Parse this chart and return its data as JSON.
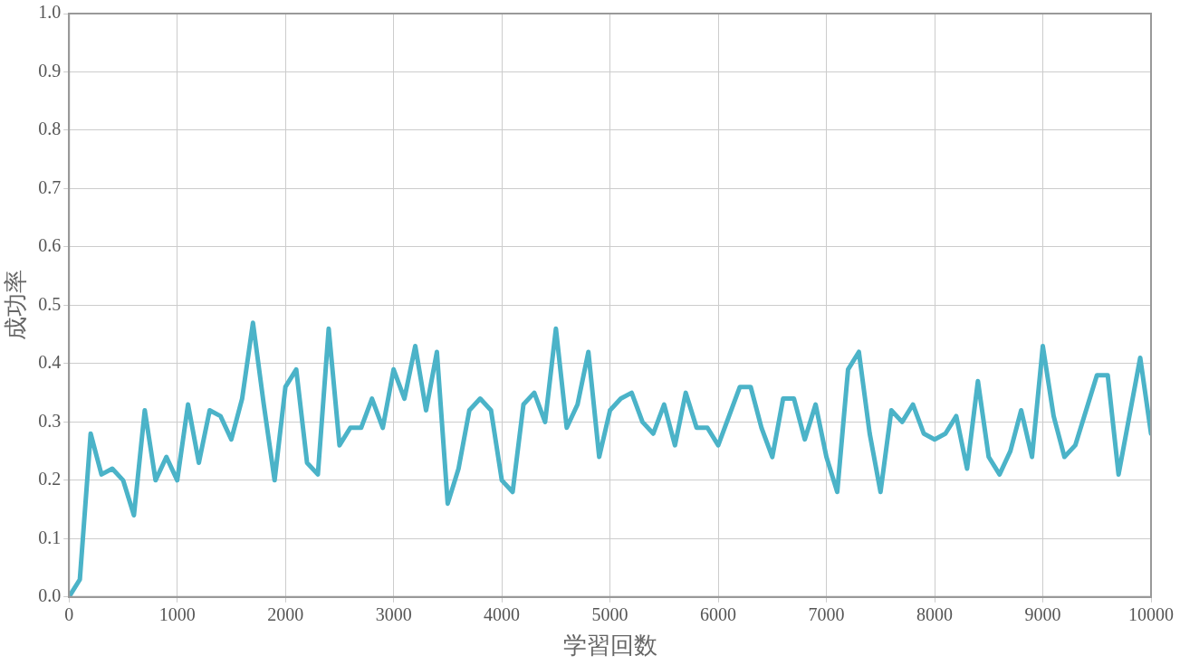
{
  "chart_data": {
    "type": "line",
    "xlabel": "学習回数",
    "ylabel": "成功率",
    "x": [
      0,
      100,
      200,
      300,
      400,
      500,
      600,
      700,
      800,
      900,
      1000,
      1100,
      1200,
      1300,
      1400,
      1500,
      1600,
      1700,
      1800,
      1900,
      2000,
      2100,
      2200,
      2300,
      2400,
      2500,
      2600,
      2700,
      2800,
      2900,
      3000,
      3100,
      3200,
      3300,
      3400,
      3500,
      3600,
      3700,
      3800,
      3900,
      4000,
      4100,
      4200,
      4300,
      4400,
      4500,
      4600,
      4700,
      4800,
      4900,
      5000,
      5100,
      5200,
      5300,
      5400,
      5500,
      5600,
      5700,
      5800,
      5900,
      6000,
      6100,
      6200,
      6300,
      6400,
      6500,
      6600,
      6700,
      6800,
      6900,
      7000,
      7100,
      7200,
      7300,
      7400,
      7500,
      7600,
      7700,
      7800,
      7900,
      8000,
      8100,
      8200,
      8300,
      8400,
      8500,
      8600,
      8700,
      8800,
      8900,
      9000,
      9100,
      9200,
      9300,
      9400,
      9500,
      9600,
      9700,
      9800,
      9900,
      10000
    ],
    "series": [
      {
        "color": "#4bb3c8",
        "values": [
          0.0,
          0.03,
          0.28,
          0.21,
          0.22,
          0.2,
          0.14,
          0.32,
          0.2,
          0.24,
          0.2,
          0.33,
          0.23,
          0.32,
          0.31,
          0.27,
          0.34,
          0.47,
          0.33,
          0.2,
          0.36,
          0.39,
          0.23,
          0.21,
          0.46,
          0.26,
          0.29,
          0.29,
          0.34,
          0.29,
          0.39,
          0.34,
          0.43,
          0.32,
          0.42,
          0.16,
          0.22,
          0.32,
          0.34,
          0.32,
          0.2,
          0.18,
          0.33,
          0.35,
          0.3,
          0.46,
          0.29,
          0.33,
          0.42,
          0.24,
          0.32,
          0.34,
          0.35,
          0.3,
          0.28,
          0.33,
          0.26,
          0.35,
          0.29,
          0.29,
          0.26,
          0.31,
          0.36,
          0.36,
          0.29,
          0.24,
          0.34,
          0.34,
          0.27,
          0.33,
          0.24,
          0.18,
          0.39,
          0.42,
          0.28,
          0.18,
          0.32,
          0.3,
          0.33,
          0.28,
          0.27,
          0.28,
          0.31,
          0.22,
          0.37,
          0.24,
          0.21,
          0.25,
          0.32,
          0.24,
          0.43,
          0.31,
          0.24,
          0.26,
          0.32,
          0.38,
          0.38,
          0.21,
          0.31,
          0.41,
          0.28
        ]
      }
    ],
    "xlim": [
      0,
      10000
    ],
    "xticks": [
      0,
      1000,
      2000,
      3000,
      4000,
      5000,
      6000,
      7000,
      8000,
      9000,
      10000
    ],
    "ylim": [
      0,
      1
    ],
    "yticks": [
      {
        "value": 0,
        "label": "0.0"
      },
      0.1,
      0.2,
      0.3,
      0.4,
      0.5,
      0.6,
      0.7,
      0.8,
      0.9,
      {
        "value": 1,
        "label": "1.0"
      }
    ],
    "grid": true
  }
}
